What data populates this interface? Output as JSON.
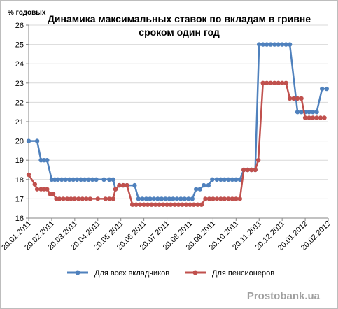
{
  "chart_data": {
    "type": "line",
    "title_line1": "Динамика максимальных ставок по вкладам в гривне",
    "title_line2": "сроком один год",
    "ylabel": "% годовых",
    "ylim": [
      16,
      26
    ],
    "yticks": [
      16,
      17,
      18,
      19,
      20,
      21,
      22,
      23,
      24,
      25,
      26
    ],
    "grid": true,
    "legend_position": "bottom",
    "xtick_labels": [
      "20.01.2011",
      "20.02.2011",
      "20.03.2011",
      "20.04.2011",
      "20.05.2011",
      "20.06.2011",
      "20.07.2011",
      "20.08.2011",
      "20.09.2011",
      "20.10.2011",
      "20.11.2011",
      "20.12.2011",
      "20.01.2012",
      "20.02.2012"
    ],
    "series": [
      {
        "name": "Для всех вкладчиков",
        "color": "#4f81bd",
        "points": [
          [
            0,
            20.0
          ],
          [
            1.1,
            20.0
          ],
          [
            1.6,
            19.0
          ],
          [
            2.0,
            19.0
          ],
          [
            2.4,
            19.0
          ],
          [
            3.0,
            18.0
          ],
          [
            3.4,
            18.0
          ],
          [
            3.8,
            18.0
          ],
          [
            4.3,
            18.0
          ],
          [
            4.8,
            18.0
          ],
          [
            5.3,
            18.0
          ],
          [
            5.8,
            18.0
          ],
          [
            6.3,
            18.0
          ],
          [
            6.8,
            18.0
          ],
          [
            7.3,
            18.0
          ],
          [
            7.8,
            18.0
          ],
          [
            8.3,
            18.0
          ],
          [
            8.8,
            18.0
          ],
          [
            9.8,
            18.0
          ],
          [
            10.5,
            18.0
          ],
          [
            11.0,
            18.0
          ],
          [
            11.3,
            17.5
          ],
          [
            11.8,
            17.7
          ],
          [
            12.3,
            17.7
          ],
          [
            12.8,
            17.7
          ],
          [
            13.8,
            17.7
          ],
          [
            14.3,
            17.0
          ],
          [
            14.8,
            17.0
          ],
          [
            15.3,
            17.0
          ],
          [
            15.8,
            17.0
          ],
          [
            16.3,
            17.0
          ],
          [
            16.8,
            17.0
          ],
          [
            17.3,
            17.0
          ],
          [
            17.8,
            17.0
          ],
          [
            18.3,
            17.0
          ],
          [
            18.8,
            17.0
          ],
          [
            19.3,
            17.0
          ],
          [
            19.8,
            17.0
          ],
          [
            20.3,
            17.0
          ],
          [
            20.8,
            17.0
          ],
          [
            21.3,
            17.0
          ],
          [
            21.8,
            17.5
          ],
          [
            22.3,
            17.5
          ],
          [
            22.8,
            17.7
          ],
          [
            23.4,
            17.7
          ],
          [
            23.9,
            18.0
          ],
          [
            24.5,
            18.0
          ],
          [
            25.0,
            18.0
          ],
          [
            25.5,
            18.0
          ],
          [
            26.0,
            18.0
          ],
          [
            26.5,
            18.0
          ],
          [
            27.0,
            18.0
          ],
          [
            27.5,
            18.0
          ],
          [
            28.0,
            18.5
          ],
          [
            28.5,
            18.5
          ],
          [
            29.0,
            18.5
          ],
          [
            29.5,
            18.5
          ],
          [
            30.0,
            25.0
          ],
          [
            30.5,
            25.0
          ],
          [
            31.0,
            25.0
          ],
          [
            31.5,
            25.0
          ],
          [
            32.0,
            25.0
          ],
          [
            32.5,
            25.0
          ],
          [
            33.0,
            25.0
          ],
          [
            33.5,
            25.0
          ],
          [
            34.0,
            25.0
          ],
          [
            35.0,
            21.5
          ],
          [
            35.5,
            21.5
          ],
          [
            36.0,
            21.5
          ],
          [
            36.5,
            21.5
          ],
          [
            37.0,
            21.5
          ],
          [
            37.5,
            21.5
          ],
          [
            38.2,
            22.7
          ],
          [
            38.8,
            22.7
          ]
        ]
      },
      {
        "name": "Для пенсионеров",
        "color": "#c0504d",
        "points": [
          [
            0,
            18.25
          ],
          [
            0.8,
            17.75
          ],
          [
            1.1,
            17.5
          ],
          [
            1.6,
            17.5
          ],
          [
            2.0,
            17.5
          ],
          [
            2.4,
            17.5
          ],
          [
            2.8,
            17.25
          ],
          [
            3.2,
            17.25
          ],
          [
            3.6,
            17.0
          ],
          [
            4.0,
            17.0
          ],
          [
            4.5,
            17.0
          ],
          [
            5.0,
            17.0
          ],
          [
            5.5,
            17.0
          ],
          [
            6.0,
            17.0
          ],
          [
            6.5,
            17.0
          ],
          [
            7.0,
            17.0
          ],
          [
            7.5,
            17.0
          ],
          [
            8.0,
            17.0
          ],
          [
            9.0,
            17.0
          ],
          [
            10.0,
            17.0
          ],
          [
            10.5,
            17.0
          ],
          [
            11.0,
            17.0
          ],
          [
            11.3,
            17.5
          ],
          [
            11.8,
            17.7
          ],
          [
            12.3,
            17.7
          ],
          [
            12.8,
            17.7
          ],
          [
            13.5,
            16.7
          ],
          [
            14.0,
            16.7
          ],
          [
            14.5,
            16.7
          ],
          [
            15.0,
            16.7
          ],
          [
            15.5,
            16.7
          ],
          [
            16.0,
            16.7
          ],
          [
            16.5,
            16.7
          ],
          [
            17.0,
            16.7
          ],
          [
            17.5,
            16.7
          ],
          [
            18.0,
            16.7
          ],
          [
            18.5,
            16.7
          ],
          [
            19.0,
            16.7
          ],
          [
            19.5,
            16.7
          ],
          [
            20.0,
            16.7
          ],
          [
            20.5,
            16.7
          ],
          [
            21.0,
            16.7
          ],
          [
            21.5,
            16.7
          ],
          [
            22.0,
            16.7
          ],
          [
            22.5,
            16.7
          ],
          [
            23.0,
            17.0
          ],
          [
            23.5,
            17.0
          ],
          [
            24.0,
            17.0
          ],
          [
            24.5,
            17.0
          ],
          [
            25.0,
            17.0
          ],
          [
            25.5,
            17.0
          ],
          [
            26.0,
            17.0
          ],
          [
            26.5,
            17.0
          ],
          [
            27.0,
            17.0
          ],
          [
            27.5,
            17.0
          ],
          [
            28.0,
            18.5
          ],
          [
            28.5,
            18.5
          ],
          [
            29.0,
            18.5
          ],
          [
            29.5,
            18.5
          ],
          [
            29.9,
            19.0
          ],
          [
            30.5,
            23.0
          ],
          [
            31.0,
            23.0
          ],
          [
            31.5,
            23.0
          ],
          [
            32.0,
            23.0
          ],
          [
            32.5,
            23.0
          ],
          [
            33.0,
            23.0
          ],
          [
            33.5,
            23.0
          ],
          [
            34.0,
            22.2
          ],
          [
            34.5,
            22.2
          ],
          [
            35.0,
            22.2
          ],
          [
            35.5,
            22.2
          ],
          [
            36.0,
            21.2
          ],
          [
            36.5,
            21.2
          ],
          [
            37.0,
            21.2
          ],
          [
            37.5,
            21.2
          ],
          [
            38.0,
            21.2
          ],
          [
            38.5,
            21.2
          ]
        ]
      }
    ]
  },
  "watermark": "Prostobank.ua"
}
